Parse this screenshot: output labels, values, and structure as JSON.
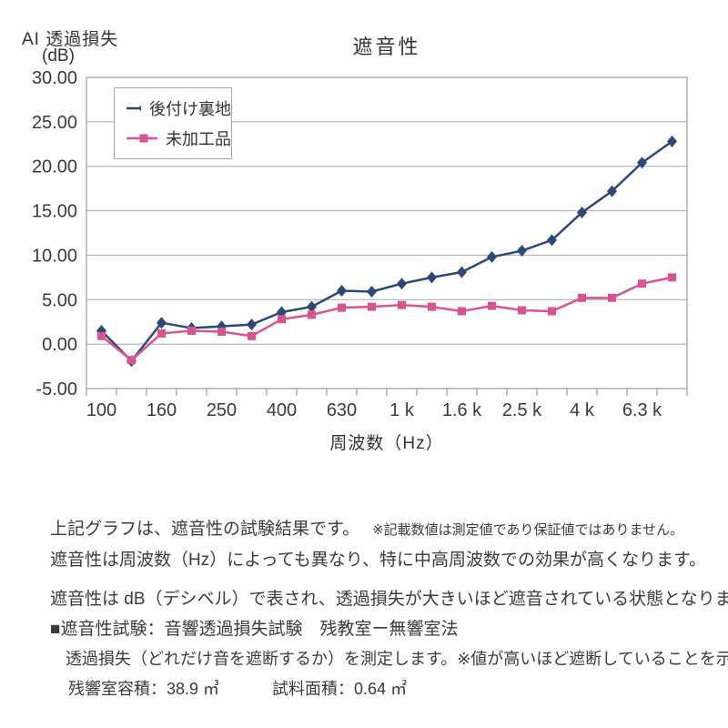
{
  "page": {
    "background": "#ffffff"
  },
  "chart": {
    "title": "遮音性",
    "y_axis_title": "AI 透過損失",
    "y_axis_unit": "(dB)",
    "x_axis_title": "周波数（Hz）"
  },
  "chart_data": {
    "type": "line",
    "title": "遮音性",
    "xlabel": "周波数（Hz）",
    "ylabel": "AI 透過損失 (dB)",
    "ylim": [
      -5,
      30
    ],
    "ytick_step": 5,
    "ytick_labels": [
      "30.00",
      "25.00",
      "20.00",
      "15.00",
      "10.00",
      "5.00",
      "0.00",
      "-5.00"
    ],
    "categories": [
      "100",
      "125",
      "160",
      "200",
      "250",
      "315",
      "400",
      "500",
      "630",
      "800",
      "1 k",
      "1.25 k",
      "1.6 k",
      "2 k",
      "2.5 k",
      "3.15 k",
      "4 k",
      "5 k",
      "6.3 k",
      "8 k"
    ],
    "xtick_labels_shown": [
      "100",
      "160",
      "250",
      "400",
      "630",
      "1 k",
      "1.6 k",
      "2.5 k",
      "4 k",
      "6.3 k"
    ],
    "grid": true,
    "legend_position": "top-left-inside",
    "colors": {
      "grid": "#a8a8a8",
      "border": "#8a8a8a",
      "text": "#3a3a3a"
    },
    "series": [
      {
        "name": "後付け裏地",
        "color": "#2b4878",
        "marker": "diamond",
        "values": [
          1.5,
          -1.9,
          2.4,
          1.8,
          2.0,
          2.2,
          3.6,
          4.2,
          6.0,
          5.9,
          6.8,
          7.5,
          8.1,
          9.8,
          10.5,
          11.7,
          14.8,
          17.2,
          20.4,
          22.8
        ]
      },
      {
        "name": "未加工品",
        "color": "#d8538f",
        "marker": "square",
        "values": [
          0.9,
          -1.8,
          1.2,
          1.5,
          1.4,
          0.9,
          2.8,
          3.3,
          4.1,
          4.2,
          4.4,
          4.2,
          3.7,
          4.3,
          3.8,
          3.7,
          5.2,
          5.2,
          6.8,
          7.5
        ]
      }
    ]
  },
  "notes": {
    "line1": "上記グラフは、遮音性の試験結果です。",
    "line1_note": "※記載数値は測定値であり保証値ではありません。",
    "line2": "遮音性は周波数（Hz）によっても異なり、特に中高周波数での効果が高くなります。",
    "line3": "遮音性は dB（デシベル）で表され、透過損失が大きいほど遮音されている状態となります。",
    "line4": "■遮音性試験：音響透過損失試験　残教室ー無響室法",
    "line5": "透過損失（どれだけ音を遮断するか）を測定します。※値が高いほど遮断していることを示します。",
    "line6_volume": "残響室容積：38.9 ㎥",
    "line6_area": "試料面積：0.64 ㎡"
  }
}
